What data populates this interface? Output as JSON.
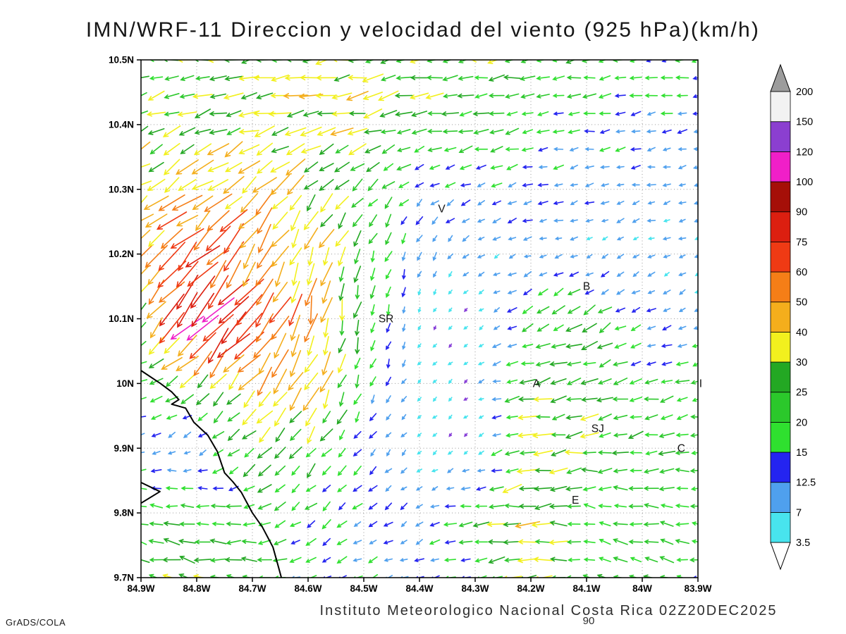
{
  "title": "IMN/WRF-11 Direccion y velocidad del viento (925 hPa)(km/h)",
  "footer": {
    "institute": "Instituto Meteorologico Nacional Costa Rica 02Z20DEC2025",
    "ref_label": "90",
    "credit": "GrADS/COLA"
  },
  "chart_data": {
    "type": "vector_field",
    "title": "IMN/WRF-11 Direccion y velocidad del viento (925 hPa)(km/h)",
    "units": "km/h",
    "level": "925 hPa",
    "valid_time": "02Z20DEC2025",
    "lon_range": [
      -84.9,
      -83.9
    ],
    "lat_range": [
      9.7,
      10.5
    ],
    "lon_tick_labels": [
      "84.9W",
      "84.8W",
      "84.7W",
      "84.6W",
      "84.5W",
      "84.4W",
      "84.3W",
      "84.2W",
      "84.1W",
      "84W",
      "83.9W"
    ],
    "lat_tick_labels": [
      "10.5N",
      "10.4N",
      "10.3N",
      "10.2N",
      "10.1N",
      "10N",
      "9.9N",
      "9.8N",
      "9.7N"
    ],
    "grid": {
      "show": true,
      "style": "dotted"
    },
    "legend": {
      "position": "right",
      "levels": [
        3.5,
        7,
        12.5,
        15,
        20,
        25,
        30,
        40,
        50,
        60,
        75,
        90,
        100,
        120,
        150,
        200
      ],
      "band_colors": [
        "#48E4EE",
        "#4FA0EE",
        "#2424F0",
        "#2FE02F",
        "#2BC82B",
        "#23A823",
        "#F2F01E",
        "#F4AE1C",
        "#F57E17",
        "#EF3A14",
        "#DC1F10",
        "#A50F08",
        "#F01FC8",
        "#8B3FD0",
        "#F2F2F2"
      ],
      "below_color": "#8840D8",
      "above_color": "#9C9C9C"
    },
    "stations": [
      {
        "label": "V",
        "lon": -84.36,
        "lat": 10.27
      },
      {
        "label": "B",
        "lon": -84.1,
        "lat": 10.15
      },
      {
        "label": "SR",
        "lon": -84.46,
        "lat": 10.1
      },
      {
        "label": "A",
        "lon": -84.19,
        "lat": 10.0
      },
      {
        "label": "SJ",
        "lon": -84.08,
        "lat": 9.93
      },
      {
        "label": "C",
        "lon": -83.93,
        "lat": 9.9
      },
      {
        "label": "E",
        "lon": -84.12,
        "lat": 9.82
      },
      {
        "label": "I",
        "lon": -83.895,
        "lat": 10.0
      }
    ],
    "coastline": [
      [
        [
          -84.9,
          10.02
        ],
        [
          -84.865,
          10.0
        ],
        [
          -84.845,
          9.987
        ],
        [
          -84.832,
          9.975
        ],
        [
          -84.845,
          9.968
        ],
        [
          -84.82,
          9.962
        ],
        [
          -84.805,
          9.94
        ],
        [
          -84.78,
          9.92
        ],
        [
          -84.763,
          9.895
        ],
        [
          -84.75,
          9.862
        ],
        [
          -84.735,
          9.848
        ],
        [
          -84.72,
          9.832
        ],
        [
          -84.7,
          9.8
        ],
        [
          -84.682,
          9.778
        ],
        [
          -84.663,
          9.747
        ],
        [
          -84.655,
          9.722
        ],
        [
          -84.648,
          9.7
        ]
      ],
      [
        [
          -84.9,
          9.847
        ],
        [
          -84.866,
          9.833
        ],
        [
          -84.9,
          9.815
        ]
      ]
    ],
    "wind_grid": {
      "lons": [
        -84.9,
        -84.8,
        -84.7,
        -84.6,
        -84.5,
        -84.4,
        -84.3,
        -84.2,
        -84.1,
        -84.0,
        -83.9
      ],
      "lats": [
        9.7,
        9.8,
        9.9,
        10.0,
        10.1,
        10.2,
        10.3,
        10.4,
        10.5
      ],
      "u": [
        [
          -25,
          -24,
          -20,
          -14,
          -12,
          -10,
          -15,
          -30,
          -20,
          -22,
          -18
        ],
        [
          -20,
          -22,
          -18,
          -12,
          -10,
          -8,
          -20,
          -35,
          -15,
          -18,
          -20
        ],
        [
          -8,
          -5,
          -18,
          -15,
          -8,
          -3,
          -2,
          -28,
          -25,
          -20,
          -22
        ],
        [
          -22,
          -18,
          -30,
          -20,
          -6,
          -3,
          -3,
          -25,
          -22,
          -15,
          -18
        ],
        [
          -10,
          -70,
          -45,
          -12,
          -4,
          -2,
          -2,
          -15,
          -20,
          -10,
          -7
        ],
        [
          -35,
          -45,
          -30,
          -15,
          -8,
          -4,
          -6,
          -8,
          -7,
          -6,
          -6
        ],
        [
          -30,
          -35,
          -30,
          -22,
          -15,
          -10,
          -12,
          -12,
          -10,
          -9,
          -8
        ],
        [
          -26,
          -24,
          -30,
          -32,
          -30,
          -26,
          -20,
          -16,
          -14,
          -12,
          -12
        ],
        [
          -22,
          -25,
          -28,
          -30,
          -30,
          -28,
          -25,
          -22,
          -20,
          -18,
          -16
        ]
      ],
      "v": [
        [
          6,
          5,
          2,
          -4,
          -5,
          -4,
          -2,
          -3,
          4,
          4,
          3
        ],
        [
          4,
          2,
          -6,
          -10,
          -8,
          -5,
          -3,
          -4,
          3,
          2,
          3
        ],
        [
          -4,
          -3,
          -15,
          -18,
          -10,
          -3,
          -2,
          -6,
          -5,
          -4,
          -3
        ],
        [
          -6,
          -15,
          -35,
          -40,
          -15,
          -3,
          -2,
          -5,
          -6,
          -4,
          -4
        ],
        [
          -18,
          -75,
          -50,
          -45,
          -20,
          -3,
          -2,
          -8,
          -12,
          -6,
          -4
        ],
        [
          -30,
          -45,
          -40,
          -35,
          -22,
          -10,
          -4,
          -3,
          -3,
          -3,
          -2
        ],
        [
          -20,
          -25,
          -28,
          -25,
          -15,
          -8,
          -4,
          -3,
          -3,
          -2,
          -2
        ],
        [
          -12,
          -8,
          -8,
          -8,
          -8,
          -6,
          -4,
          -3,
          -2,
          -2,
          -2
        ],
        [
          -4,
          -4,
          -5,
          -5,
          -6,
          -5,
          -4,
          -3,
          -3,
          -2,
          -2
        ]
      ]
    },
    "arrow_density": {
      "cols": 37,
      "rows": 30
    }
  }
}
